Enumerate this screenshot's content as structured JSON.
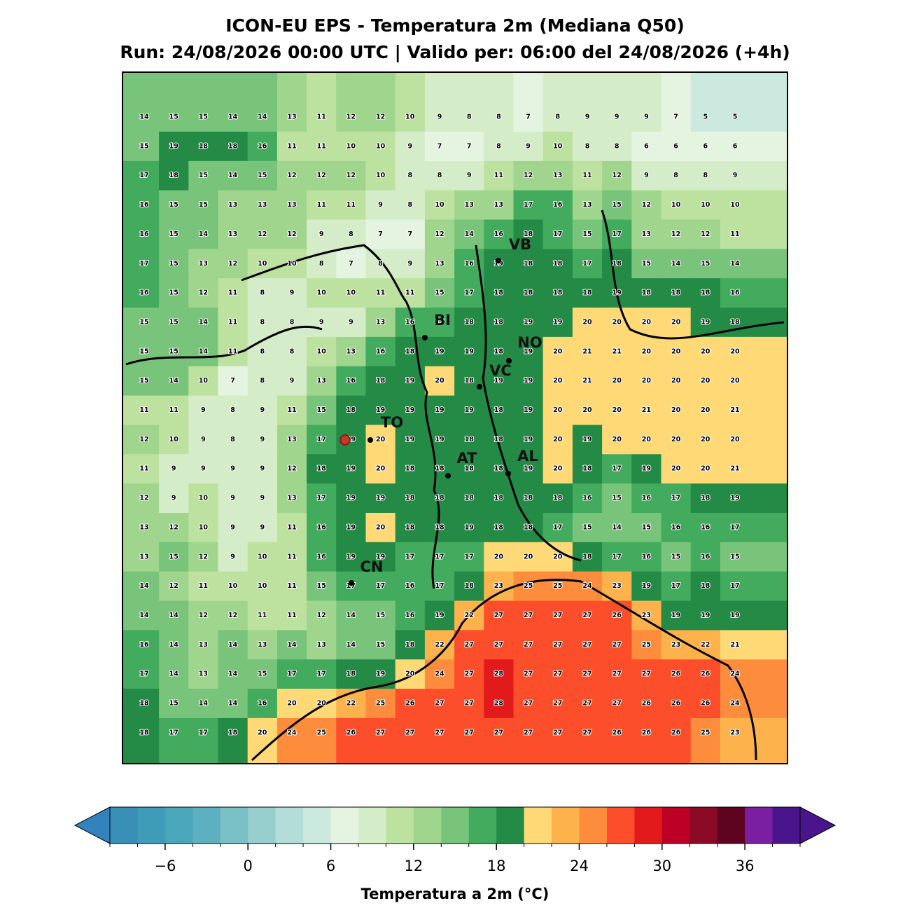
{
  "title": "ICON-EU EPS - Temperatura 2m (Mediana Q50)",
  "subtitle": "Run: 24/08/2026 00:00 UTC | Valido per: 06:00 del 24/08/2026 (+4h)",
  "map": {
    "grid": [
      [
        14,
        15,
        15,
        14,
        14,
        13,
        11,
        12,
        12,
        10,
        9,
        8,
        8,
        7,
        8,
        9,
        9,
        9,
        7,
        5,
        5
      ],
      [
        15,
        19,
        18,
        18,
        16,
        11,
        11,
        10,
        10,
        9,
        7,
        7,
        8,
        9,
        10,
        8,
        8,
        6,
        6,
        6,
        6
      ],
      [
        17,
        18,
        15,
        14,
        15,
        12,
        12,
        12,
        10,
        8,
        8,
        9,
        11,
        12,
        13,
        11,
        12,
        9,
        8,
        8,
        9
      ],
      [
        16,
        15,
        15,
        13,
        13,
        13,
        11,
        11,
        9,
        8,
        10,
        13,
        13,
        17,
        16,
        13,
        15,
        12,
        10,
        10,
        10
      ],
      [
        16,
        15,
        14,
        13,
        12,
        12,
        9,
        8,
        7,
        7,
        12,
        14,
        16,
        18,
        17,
        15,
        17,
        13,
        12,
        12,
        11
      ],
      [
        17,
        15,
        13,
        12,
        10,
        10,
        8,
        7,
        8,
        9,
        13,
        16,
        19,
        18,
        18,
        17,
        18,
        15,
        14,
        15,
        14
      ],
      [
        16,
        15,
        12,
        11,
        8,
        9,
        10,
        10,
        11,
        11,
        15,
        17,
        18,
        18,
        18,
        18,
        19,
        18,
        18,
        18,
        16
      ],
      [
        15,
        15,
        14,
        11,
        8,
        8,
        9,
        9,
        13,
        16,
        17,
        18,
        18,
        19,
        19,
        20,
        20,
        20,
        20,
        19,
        18
      ],
      [
        15,
        15,
        14,
        11,
        8,
        8,
        10,
        13,
        16,
        18,
        19,
        19,
        18,
        19,
        20,
        21,
        21,
        20,
        20,
        20,
        20
      ],
      [
        15,
        14,
        10,
        7,
        8,
        9,
        13,
        16,
        18,
        19,
        20,
        18,
        19,
        19,
        20,
        21,
        20,
        20,
        20,
        20,
        20
      ],
      [
        11,
        11,
        9,
        8,
        9,
        11,
        15,
        18,
        19,
        19,
        19,
        19,
        18,
        19,
        20,
        20,
        20,
        21,
        20,
        20,
        21
      ],
      [
        12,
        10,
        9,
        8,
        9,
        13,
        17,
        19,
        20,
        19,
        19,
        18,
        18,
        19,
        20,
        19,
        20,
        20,
        20,
        20,
        20
      ],
      [
        11,
        9,
        9,
        9,
        9,
        12,
        18,
        19,
        20,
        18,
        18,
        18,
        18,
        19,
        20,
        18,
        17,
        19,
        20,
        20,
        21
      ],
      [
        12,
        9,
        10,
        9,
        9,
        13,
        17,
        19,
        19,
        18,
        18,
        18,
        18,
        18,
        18,
        16,
        15,
        16,
        17,
        18,
        19
      ],
      [
        13,
        12,
        10,
        9,
        9,
        11,
        16,
        19,
        20,
        18,
        18,
        19,
        18,
        18,
        17,
        15,
        14,
        15,
        16,
        16,
        17
      ],
      [
        13,
        15,
        12,
        9,
        10,
        11,
        16,
        19,
        19,
        17,
        17,
        17,
        20,
        20,
        20,
        18,
        17,
        16,
        15,
        16,
        15
      ],
      [
        14,
        12,
        11,
        10,
        10,
        11,
        15,
        17,
        17,
        16,
        17,
        18,
        23,
        25,
        25,
        24,
        23,
        19,
        17,
        18,
        17
      ],
      [
        14,
        14,
        12,
        12,
        11,
        11,
        12,
        14,
        15,
        16,
        19,
        22,
        27,
        27,
        27,
        27,
        26,
        23,
        19,
        19,
        19
      ],
      [
        16,
        14,
        13,
        14,
        13,
        14,
        13,
        14,
        15,
        18,
        22,
        27,
        27,
        27,
        27,
        27,
        27,
        25,
        23,
        22,
        21
      ],
      [
        17,
        14,
        13,
        14,
        15,
        17,
        17,
        18,
        19,
        20,
        24,
        27,
        28,
        27,
        27,
        27,
        27,
        27,
        26,
        26,
        24
      ],
      [
        18,
        15,
        14,
        14,
        16,
        20,
        20,
        22,
        25,
        26,
        27,
        27,
        28,
        27,
        27,
        27,
        27,
        26,
        26,
        26,
        24
      ],
      [
        18,
        17,
        17,
        18,
        20,
        24,
        25,
        26,
        27,
        27,
        27,
        27,
        27,
        27,
        27,
        27,
        26,
        26,
        26,
        25,
        23
      ]
    ]
  },
  "cities": [
    "VB",
    "BI",
    "NO",
    "VC",
    "TO",
    "AT",
    "AL",
    "CN"
  ],
  "colorbar": {
    "label": "Temperatura a 2m (°C)",
    "levels": [
      -10,
      -8,
      -6,
      -4,
      -2,
      0,
      2,
      4,
      6,
      8,
      10,
      12,
      14,
      16,
      18,
      20,
      22,
      24,
      26,
      28,
      30,
      32,
      34,
      36,
      38,
      40
    ],
    "colors": [
      "#3a8fb7",
      "#3e9cb8",
      "#4aa6bb",
      "#5db0c0",
      "#7ac0c7",
      "#96cfce",
      "#b3ddd8",
      "#cce9df",
      "#e5f4e0",
      "#d4edc8",
      "#bde2a0",
      "#a0d58e",
      "#78c47a",
      "#42ab5d",
      "#238b45",
      "#fed976",
      "#feb24c",
      "#fd8d3c",
      "#fc4e2a",
      "#e31a1c",
      "#bd0026",
      "#8b0a26",
      "#5e0320",
      "#7b1fa2",
      "#4a148c"
    ],
    "under_color": "#3182bd",
    "over_color": "#4a148c",
    "ticks": [
      {
        "value": -6,
        "label": "−6"
      },
      0,
      6,
      12,
      18,
      24,
      30,
      36
    ]
  }
}
